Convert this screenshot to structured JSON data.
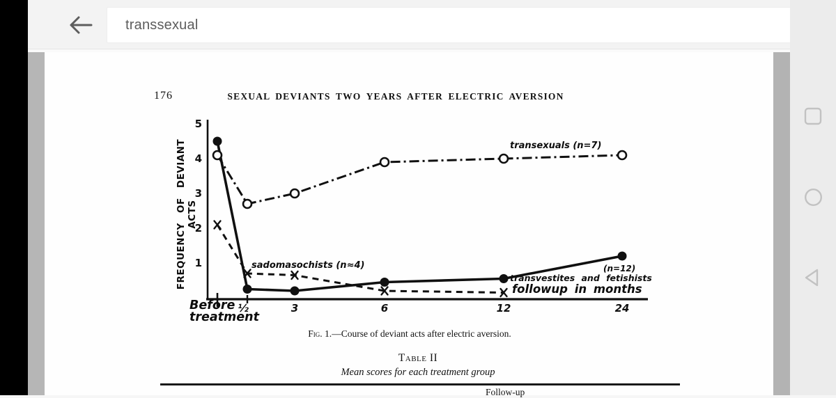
{
  "app": {
    "search_query": "transsexual"
  },
  "page": {
    "page_number": "176",
    "running_title": "SEXUAL DEVIANTS TWO YEARS AFTER ELECTRIC AVERSION",
    "figure_caption_prefix": "Fig. 1.",
    "figure_caption_rest": "—Course of deviant acts after electric aversion.",
    "table_title": "Table II",
    "table_subtitle": "Mean scores for each treatment group",
    "table_partial_header": "Follow-up"
  },
  "chart_data": {
    "type": "line",
    "title": "Course of deviant acts after electric aversion",
    "ylabel": "FREQUENCY OF DEVIANT ACTS",
    "xlabel": "followup in months",
    "categories": [
      "Before treatment",
      "½",
      "3",
      "6",
      "12",
      "24"
    ],
    "x_tick_labels": [
      "½",
      "3",
      "6",
      "12",
      "24"
    ],
    "yticks": [
      5,
      4,
      3,
      2,
      1
    ],
    "ylim": [
      0,
      5
    ],
    "grid": false,
    "legend_position": "labels-on-lines",
    "series": [
      {
        "name": "transexuals",
        "n": 7,
        "marker": "open-circle",
        "line": "dashdot",
        "values": [
          4.1,
          2.7,
          3.0,
          3.9,
          4.0,
          4.1
        ]
      },
      {
        "name": "transvestites and fetishists",
        "n": 12,
        "marker": "filled-circle",
        "line": "solid",
        "values": [
          4.5,
          0.25,
          0.2,
          0.45,
          0.55,
          1.2
        ]
      },
      {
        "name": "sadomasochists",
        "n": 4,
        "marker": "x",
        "line": "dashed",
        "values": [
          2.1,
          0.7,
          0.65,
          0.2,
          0.15,
          null
        ]
      }
    ],
    "labels": {
      "transexuals": "transexuals (n=7)",
      "sadomasochists": "sadomasochists (n≈4)",
      "transvestites_n": "(n=12)",
      "transvestites": "transvestites and fetishists",
      "followup": "followup in months",
      "before_line1": "Before",
      "before_line2": "treatment"
    },
    "ink_color": "#101010"
  }
}
